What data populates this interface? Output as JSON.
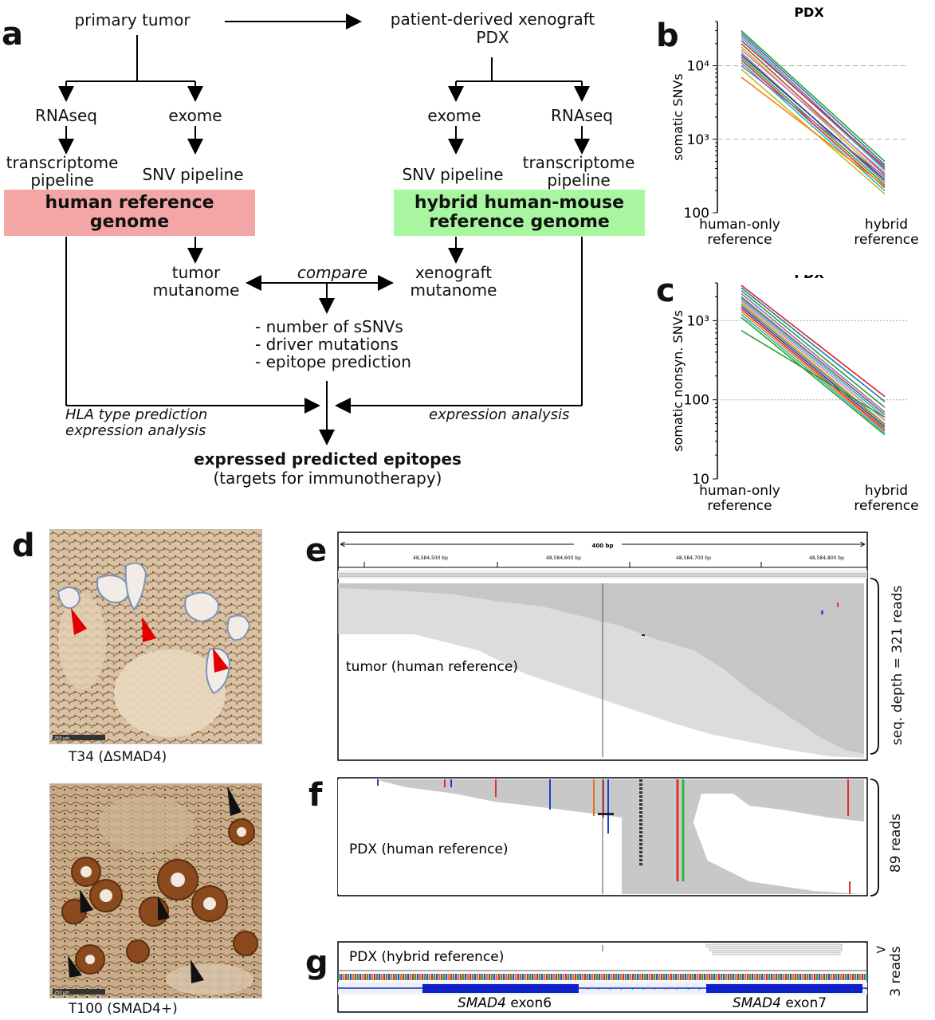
{
  "panel_labels": {
    "a": "a",
    "b": "b",
    "c": "c",
    "d": "d",
    "e": "e",
    "f": "f",
    "g": "g"
  },
  "flow": {
    "primary_tumor": "primary tumor",
    "pdx_line1": "patient-derived xenograft",
    "pdx_line2": "PDX",
    "rnaseq": "RNAseq",
    "exome": "exome",
    "transcriptome_l1": "transcriptome",
    "transcriptome_l2": "pipeline",
    "snv_pipeline": "SNV pipeline",
    "human_ref_l1": "human reference",
    "human_ref_l2": "genome",
    "hybrid_ref_l1": "hybrid human-mouse",
    "hybrid_ref_l2": "reference genome",
    "tumor_mut_l1": "tumor",
    "tumor_mut_l2": "mutanome",
    "xeno_mut_l1": "xenograft",
    "xeno_mut_l2": "mutanome",
    "compare": "compare",
    "list": [
      "- number of sSNVs",
      "- driver mutations",
      "- epitope prediction"
    ],
    "hla_l1": "HLA type prediction",
    "hla_l2": "expression analysis",
    "expr_analysis": "expression analysis",
    "final_l1": "expressed predicted epitopes",
    "final_l2": "(targets for immunotherapy)",
    "colors": {
      "human_box": "#f4a6a6",
      "hybrid_box": "#a8f7a0"
    }
  },
  "chart_data": [
    {
      "type": "line",
      "panel": "b",
      "title": "PDX",
      "ylabel": "somatic SNVs",
      "xlabel": "",
      "categories": [
        "human-only reference",
        "hybrid reference"
      ],
      "yscale": "log",
      "ylim": [
        100,
        40000
      ],
      "yticks": [
        {
          "v": 100,
          "label": "100"
        },
        {
          "v": 1000,
          "label": "10³"
        },
        {
          "v": 10000,
          "label": "10⁴"
        }
      ],
      "grid": "dashed at 10³ and 10⁴",
      "series": [
        {
          "values": [
            30000,
            500
          ],
          "color": "#2ca02c"
        },
        {
          "values": [
            28000,
            450
          ],
          "color": "#1f77b4"
        },
        {
          "values": [
            26000,
            400
          ],
          "color": "#9467bd"
        },
        {
          "values": [
            24000,
            380
          ],
          "color": "#17becf"
        },
        {
          "values": [
            22000,
            420
          ],
          "color": "#d62728"
        },
        {
          "values": [
            20000,
            330
          ],
          "color": "#8c564b"
        },
        {
          "values": [
            18000,
            300
          ],
          "color": "#bcbd22"
        },
        {
          "values": [
            16500,
            350
          ],
          "color": "#e377c2"
        },
        {
          "values": [
            15000,
            260
          ],
          "color": "#7f7f7f"
        },
        {
          "values": [
            14000,
            280
          ],
          "color": "#1f3f9f"
        },
        {
          "values": [
            13000,
            240
          ],
          "color": "#2ca02c"
        },
        {
          "values": [
            12000,
            220
          ],
          "color": "#d62728"
        },
        {
          "values": [
            11000,
            200
          ],
          "color": "#17becf"
        },
        {
          "values": [
            10000,
            310
          ],
          "color": "#9467bd"
        },
        {
          "values": [
            9000,
            180
          ],
          "color": "#bcbd22"
        },
        {
          "values": [
            7000,
            230
          ],
          "color": "#ff7f0e"
        }
      ]
    },
    {
      "type": "line",
      "panel": "c",
      "title": "PDX",
      "ylabel": "somatic nonsyn. SNVs",
      "xlabel": "",
      "categories": [
        "human-only reference",
        "hybrid reference"
      ],
      "yscale": "log",
      "ylim": [
        10,
        3000
      ],
      "yticks": [
        {
          "v": 10,
          "label": "10"
        },
        {
          "v": 100,
          "label": "100"
        },
        {
          "v": 1000,
          "label": "10³"
        }
      ],
      "grid": "dotted at 100 and 10³",
      "series": [
        {
          "values": [
            2800,
            110
          ],
          "color": "#d62728"
        },
        {
          "values": [
            2600,
            95
          ],
          "color": "#1f77b4"
        },
        {
          "values": [
            2400,
            80
          ],
          "color": "#2ca02c"
        },
        {
          "values": [
            2200,
            70
          ],
          "color": "#9467bd"
        },
        {
          "values": [
            2000,
            65
          ],
          "color": "#8c564b"
        },
        {
          "values": [
            1900,
            60
          ],
          "color": "#17becf"
        },
        {
          "values": [
            1800,
            55
          ],
          "color": "#e377c2"
        },
        {
          "values": [
            1700,
            50
          ],
          "color": "#bcbd22"
        },
        {
          "values": [
            1600,
            48
          ],
          "color": "#7f7f7f"
        },
        {
          "values": [
            1500,
            45
          ],
          "color": "#1f3f9f"
        },
        {
          "values": [
            1400,
            42
          ],
          "color": "#d62728"
        },
        {
          "values": [
            1300,
            40
          ],
          "color": "#ff7f0e"
        },
        {
          "values": [
            1200,
            38
          ],
          "color": "#17becf"
        },
        {
          "values": [
            1100,
            36
          ],
          "color": "#2ca02c"
        },
        {
          "values": [
            750,
            60
          ],
          "color": "#2ca02c"
        }
      ]
    }
  ],
  "histology": {
    "top_caption": "T34 (ΔSMAD4)",
    "bottom_caption": "T100 (SMAD4+)",
    "scale_text": "250 µm"
  },
  "igv": {
    "ruler_width": "400 bp",
    "positions": [
      "48,584,500 bp",
      "48,584,600 bp",
      "48,584,700 bp",
      "48,584,800 bp"
    ],
    "e_label": "tumor (human reference)",
    "e_depth": "seq. depth = 321 reads",
    "f_label": "PDX (human reference)",
    "f_depth": "89 reads",
    "g_label": "PDX (hybrid reference)",
    "g_depth": "3 reads",
    "g_marker": ">",
    "exon6_gene": "SMAD4",
    "exon6_name": " exon6",
    "exon7_gene": "SMAD4",
    "exon7_name": " exon7"
  }
}
